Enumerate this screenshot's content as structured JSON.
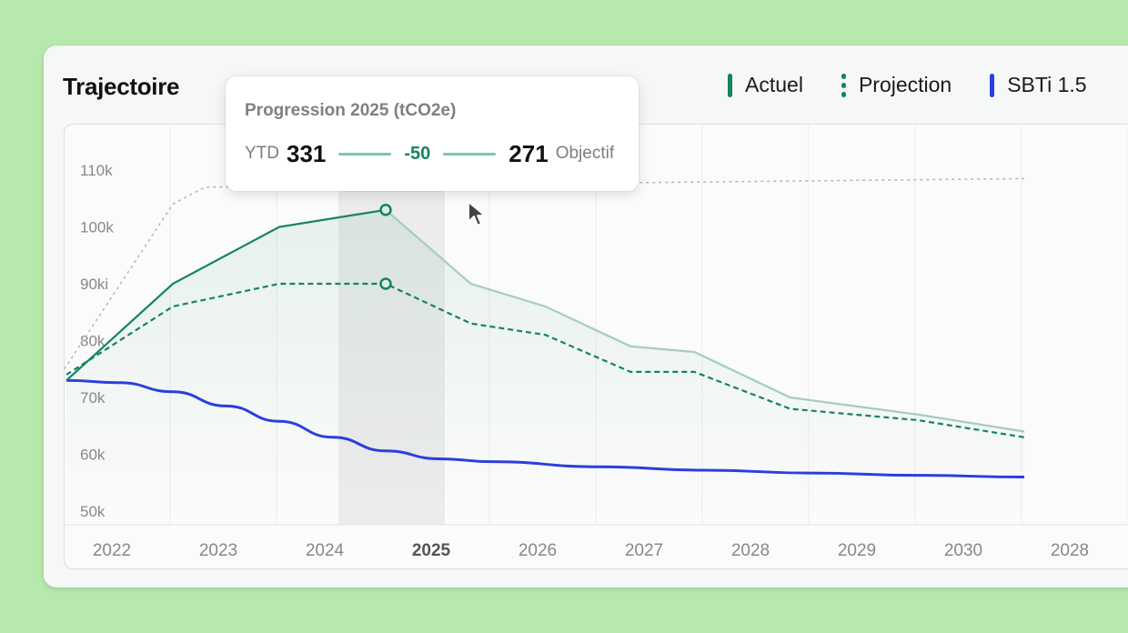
{
  "header": {
    "title": "Trajectoire"
  },
  "legend": [
    {
      "label": "Actuel",
      "style": "solid",
      "color": "#15845f"
    },
    {
      "label": "Projection",
      "style": "dotted",
      "color": "#15845f"
    },
    {
      "label": "SBTi 1.5",
      "style": "solid",
      "color": "#2a3fdc"
    }
  ],
  "tooltip": {
    "title": "Progression 2025 (tCO2e)",
    "ytd_label": "YTD",
    "ytd_value": "331",
    "delta": "-50",
    "target_value": "271",
    "target_label": "Objectif"
  },
  "chart_data": {
    "type": "line",
    "categories": [
      "2022",
      "2023",
      "2024",
      "2025",
      "2026",
      "2027",
      "2028",
      "2029",
      "2030",
      "2028"
    ],
    "highlighted_category": "2025",
    "y_ticks": [
      "110k",
      "100k",
      "90ki",
      "80k",
      "70k",
      "60k",
      "50k"
    ],
    "ylim": [
      50000,
      110000
    ],
    "grid": "vertical",
    "legend_position": "top-right",
    "series": [
      {
        "name": "Actuel",
        "style": "solid",
        "color": "#15845f",
        "faded_color": "#a5cdbd",
        "x": [
          2022,
          2023,
          2024,
          2025,
          2025.8,
          2026.5,
          2027.3,
          2027.9,
          2028.8,
          2030,
          2031
        ],
        "y": [
          73000,
          90000,
          100000,
          103000,
          90000,
          86000,
          79000,
          78000,
          70000,
          67000,
          64000
        ]
      },
      {
        "name": "Projection",
        "style": "dashed",
        "color": "#15845f",
        "x": [
          2022,
          2023,
          2024,
          2025,
          2025.8,
          2026.5,
          2027.3,
          2027.9,
          2028.8,
          2030,
          2031
        ],
        "y": [
          74000,
          86000,
          90000,
          90000,
          83000,
          81000,
          74500,
          74500,
          68000,
          66000,
          63000
        ]
      },
      {
        "name": "SBTi 1.5",
        "style": "solid",
        "color": "#2a3fdc",
        "x": [
          2022,
          2022.5,
          2023,
          2023.5,
          2024,
          2024.5,
          2025,
          2025.5,
          2026,
          2027,
          2028,
          2029,
          2030,
          2031
        ],
        "y": [
          73000,
          72600,
          71000,
          68500,
          65800,
          63000,
          60600,
          59200,
          58700,
          57800,
          57200,
          56700,
          56300,
          56000
        ]
      }
    ],
    "reference_line": {
      "style": "dotted",
      "color": "#b5b5b5",
      "x": [
        2021.98,
        2023,
        2023.3,
        2031
      ],
      "y": [
        75000,
        104000,
        107000,
        108500
      ]
    }
  }
}
